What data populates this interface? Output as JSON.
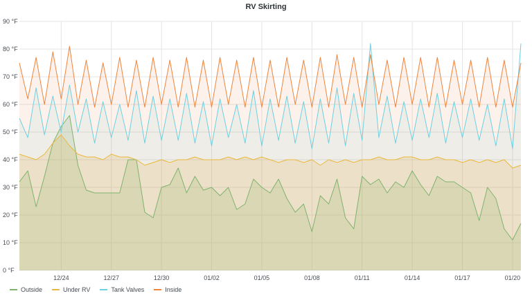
{
  "chart_data": {
    "type": "area",
    "title": "RV Skirting",
    "xlabel": "",
    "ylabel": "",
    "x_range": [
      "2020-12-21T12:00",
      "2021-01-20T12:00"
    ],
    "ylim": [
      0,
      90
    ],
    "y_ticks": [
      "0 °F",
      "10 °F",
      "20 °F",
      "30 °F",
      "40 °F",
      "50 °F",
      "60 °F",
      "70 °F",
      "80 °F",
      "90 °F"
    ],
    "y_tick_values": [
      0,
      10,
      20,
      30,
      40,
      50,
      60,
      70,
      80,
      90
    ],
    "x_ticks": [
      {
        "label": "12/24",
        "date": "2020-12-24"
      },
      {
        "label": "12/27",
        "date": "2020-12-27"
      },
      {
        "label": "12/30",
        "date": "2020-12-30"
      },
      {
        "label": "01/02",
        "date": "2021-01-02"
      },
      {
        "label": "01/05",
        "date": "2021-01-05"
      },
      {
        "label": "01/08",
        "date": "2021-01-08"
      },
      {
        "label": "01/11",
        "date": "2021-01-11"
      },
      {
        "label": "01/14",
        "date": "2021-01-14"
      },
      {
        "label": "01/17",
        "date": "2021-01-17"
      },
      {
        "label": "01/20",
        "date": "2021-01-20"
      }
    ],
    "grid": true,
    "legend_position": "bottom-left",
    "series": [
      {
        "name": "Outside",
        "color": "#7eb26d",
        "fill_opacity": 0.2,
        "x": [
          "2020-12-21T12:00",
          "2020-12-22T00:00",
          "2020-12-22T12:00",
          "2020-12-23T00:00",
          "2020-12-23T12:00",
          "2020-12-24T00:00",
          "2020-12-24T12:00",
          "2020-12-25T00:00",
          "2020-12-25T12:00",
          "2020-12-26T00:00",
          "2020-12-26T12:00",
          "2020-12-27T00:00",
          "2020-12-27T12:00",
          "2020-12-28T00:00",
          "2020-12-28T12:00",
          "2020-12-29T00:00",
          "2020-12-29T12:00",
          "2020-12-30T00:00",
          "2020-12-30T12:00",
          "2020-12-31T00:00",
          "2020-12-31T12:00",
          "2021-01-01T00:00",
          "2021-01-01T12:00",
          "2021-01-02T00:00",
          "2021-01-02T12:00",
          "2021-01-03T00:00",
          "2021-01-03T12:00",
          "2021-01-04T00:00",
          "2021-01-04T12:00",
          "2021-01-05T00:00",
          "2021-01-05T12:00",
          "2021-01-06T00:00",
          "2021-01-06T12:00",
          "2021-01-07T00:00",
          "2021-01-07T12:00",
          "2021-01-08T00:00",
          "2021-01-08T12:00",
          "2021-01-09T00:00",
          "2021-01-09T12:00",
          "2021-01-10T00:00",
          "2021-01-10T12:00",
          "2021-01-11T00:00",
          "2021-01-11T12:00",
          "2021-01-12T00:00",
          "2021-01-12T12:00",
          "2021-01-13T00:00",
          "2021-01-13T12:00",
          "2021-01-14T00:00",
          "2021-01-14T12:00",
          "2021-01-15T00:00",
          "2021-01-15T12:00",
          "2021-01-16T00:00",
          "2021-01-16T12:00",
          "2021-01-17T00:00",
          "2021-01-17T12:00",
          "2021-01-18T00:00",
          "2021-01-18T12:00",
          "2021-01-19T00:00",
          "2021-01-19T12:00",
          "2021-01-20T00:00",
          "2021-01-20T12:00"
        ],
        "values": [
          32,
          36,
          23,
          34,
          46,
          52,
          56,
          38,
          29,
          28,
          28,
          28,
          28,
          40,
          40,
          21,
          19,
          30,
          31,
          37,
          28,
          34,
          29,
          30,
          27,
          30,
          22,
          24,
          33,
          30,
          28,
          33,
          26,
          21,
          24,
          14,
          27,
          24,
          33,
          19,
          15,
          34,
          31,
          33,
          28,
          32,
          30,
          36,
          31,
          27,
          34,
          32,
          32,
          30,
          28,
          18,
          30,
          26,
          15,
          11,
          17
        ]
      },
      {
        "name": "Under RV",
        "color": "#eab839",
        "fill_opacity": 0.2,
        "x": [
          "2020-12-21T12:00",
          "2020-12-22T00:00",
          "2020-12-22T12:00",
          "2020-12-23T00:00",
          "2020-12-23T12:00",
          "2020-12-24T00:00",
          "2020-12-24T12:00",
          "2020-12-25T00:00",
          "2020-12-25T12:00",
          "2020-12-26T00:00",
          "2020-12-26T12:00",
          "2020-12-27T00:00",
          "2020-12-27T12:00",
          "2020-12-28T00:00",
          "2020-12-28T12:00",
          "2020-12-29T00:00",
          "2020-12-29T12:00",
          "2020-12-30T00:00",
          "2020-12-30T12:00",
          "2020-12-31T00:00",
          "2020-12-31T12:00",
          "2021-01-01T00:00",
          "2021-01-01T12:00",
          "2021-01-02T00:00",
          "2021-01-02T12:00",
          "2021-01-03T00:00",
          "2021-01-03T12:00",
          "2021-01-04T00:00",
          "2021-01-04T12:00",
          "2021-01-05T00:00",
          "2021-01-05T12:00",
          "2021-01-06T00:00",
          "2021-01-06T12:00",
          "2021-01-07T00:00",
          "2021-01-07T12:00",
          "2021-01-08T00:00",
          "2021-01-08T12:00",
          "2021-01-09T00:00",
          "2021-01-09T12:00",
          "2021-01-10T00:00",
          "2021-01-10T12:00",
          "2021-01-11T00:00",
          "2021-01-11T12:00",
          "2021-01-12T00:00",
          "2021-01-12T12:00",
          "2021-01-13T00:00",
          "2021-01-13T12:00",
          "2021-01-14T00:00",
          "2021-01-14T12:00",
          "2021-01-15T00:00",
          "2021-01-15T12:00",
          "2021-01-16T00:00",
          "2021-01-16T12:00",
          "2021-01-17T00:00",
          "2021-01-17T12:00",
          "2021-01-18T00:00",
          "2021-01-18T12:00",
          "2021-01-19T00:00",
          "2021-01-19T12:00",
          "2021-01-20T00:00",
          "2021-01-20T12:00"
        ],
        "values": [
          42,
          41,
          40,
          42,
          46,
          49,
          45,
          42,
          41,
          41,
          40,
          42,
          41,
          41,
          40,
          38,
          39,
          40,
          39,
          40,
          40,
          41,
          40,
          40,
          40,
          41,
          40,
          41,
          40,
          41,
          40,
          39,
          40,
          40,
          39,
          40,
          38,
          40,
          39,
          40,
          39,
          40,
          40,
          41,
          40,
          40,
          41,
          41,
          40,
          40,
          41,
          40,
          40,
          39,
          40,
          39,
          40,
          39,
          40,
          37,
          38
        ]
      },
      {
        "name": "Tank Valves",
        "color": "#6ed0e0",
        "fill_opacity": 0.1,
        "x": [
          "2020-12-21T12:00",
          "2020-12-22T00:00",
          "2020-12-22T12:00",
          "2020-12-23T00:00",
          "2020-12-23T12:00",
          "2020-12-24T00:00",
          "2020-12-24T12:00",
          "2020-12-25T00:00",
          "2020-12-25T12:00",
          "2020-12-26T00:00",
          "2020-12-26T12:00",
          "2020-12-27T00:00",
          "2020-12-27T12:00",
          "2020-12-28T00:00",
          "2020-12-28T12:00",
          "2020-12-29T00:00",
          "2020-12-29T12:00",
          "2020-12-30T00:00",
          "2020-12-30T12:00",
          "2020-12-31T00:00",
          "2020-12-31T12:00",
          "2021-01-01T00:00",
          "2021-01-01T12:00",
          "2021-01-02T00:00",
          "2021-01-02T12:00",
          "2021-01-03T00:00",
          "2021-01-03T12:00",
          "2021-01-04T00:00",
          "2021-01-04T12:00",
          "2021-01-05T00:00",
          "2021-01-05T12:00",
          "2021-01-06T00:00",
          "2021-01-06T12:00",
          "2021-01-07T00:00",
          "2021-01-07T12:00",
          "2021-01-08T00:00",
          "2021-01-08T12:00",
          "2021-01-09T00:00",
          "2021-01-09T12:00",
          "2021-01-10T00:00",
          "2021-01-10T12:00",
          "2021-01-11T00:00",
          "2021-01-11T12:00",
          "2021-01-12T00:00",
          "2021-01-12T12:00",
          "2021-01-13T00:00",
          "2021-01-13T12:00",
          "2021-01-14T00:00",
          "2021-01-14T12:00",
          "2021-01-15T00:00",
          "2021-01-15T12:00",
          "2021-01-16T00:00",
          "2021-01-16T12:00",
          "2021-01-17T00:00",
          "2021-01-17T12:00",
          "2021-01-18T00:00",
          "2021-01-18T12:00",
          "2021-01-19T00:00",
          "2021-01-19T12:00",
          "2021-01-20T00:00",
          "2021-01-20T12:00"
        ],
        "values": [
          55,
          48,
          66,
          49,
          63,
          50,
          67,
          50,
          62,
          46,
          61,
          48,
          60,
          47,
          65,
          46,
          63,
          47,
          62,
          47,
          64,
          46,
          61,
          45,
          62,
          48,
          60,
          46,
          65,
          45,
          62,
          47,
          63,
          46,
          61,
          44,
          62,
          46,
          66,
          45,
          64,
          47,
          82,
          48,
          63,
          46,
          61,
          47,
          62,
          48,
          64,
          46,
          61,
          48,
          62,
          47,
          60,
          45,
          62,
          44,
          82
        ]
      },
      {
        "name": "Inside",
        "color": "#ef843c",
        "fill_opacity": 0.1,
        "x": [
          "2020-12-21T12:00",
          "2020-12-22T00:00",
          "2020-12-22T12:00",
          "2020-12-23T00:00",
          "2020-12-23T12:00",
          "2020-12-24T00:00",
          "2020-12-24T12:00",
          "2020-12-25T00:00",
          "2020-12-25T12:00",
          "2020-12-26T00:00",
          "2020-12-26T12:00",
          "2020-12-27T00:00",
          "2020-12-27T12:00",
          "2020-12-28T00:00",
          "2020-12-28T12:00",
          "2020-12-29T00:00",
          "2020-12-29T12:00",
          "2020-12-30T00:00",
          "2020-12-30T12:00",
          "2020-12-31T00:00",
          "2020-12-31T12:00",
          "2021-01-01T00:00",
          "2021-01-01T12:00",
          "2021-01-02T00:00",
          "2021-01-02T12:00",
          "2021-01-03T00:00",
          "2021-01-03T12:00",
          "2021-01-04T00:00",
          "2021-01-04T12:00",
          "2021-01-05T00:00",
          "2021-01-05T12:00",
          "2021-01-06T00:00",
          "2021-01-06T12:00",
          "2021-01-07T00:00",
          "2021-01-07T12:00",
          "2021-01-08T00:00",
          "2021-01-08T12:00",
          "2021-01-09T00:00",
          "2021-01-09T12:00",
          "2021-01-10T00:00",
          "2021-01-10T12:00",
          "2021-01-11T00:00",
          "2021-01-11T12:00",
          "2021-01-12T00:00",
          "2021-01-12T12:00",
          "2021-01-13T00:00",
          "2021-01-13T12:00",
          "2021-01-14T00:00",
          "2021-01-14T12:00",
          "2021-01-15T00:00",
          "2021-01-15T12:00",
          "2021-01-16T00:00",
          "2021-01-16T12:00",
          "2021-01-17T00:00",
          "2021-01-17T12:00",
          "2021-01-18T00:00",
          "2021-01-18T12:00",
          "2021-01-19T00:00",
          "2021-01-19T12:00",
          "2021-01-20T00:00",
          "2021-01-20T12:00"
        ],
        "values": [
          75,
          62,
          77,
          60,
          79,
          62,
          81,
          60,
          76,
          59,
          75,
          60,
          77,
          59,
          76,
          59,
          77,
          60,
          76,
          59,
          77,
          59,
          76,
          59,
          77,
          60,
          76,
          59,
          77,
          59,
          76,
          59,
          77,
          60,
          76,
          59,
          77,
          59,
          78,
          60,
          77,
          59,
          78,
          60,
          76,
          59,
          77,
          60,
          77,
          59,
          77,
          59,
          76,
          60,
          76,
          59,
          77,
          59,
          76,
          59,
          75
        ]
      }
    ]
  }
}
